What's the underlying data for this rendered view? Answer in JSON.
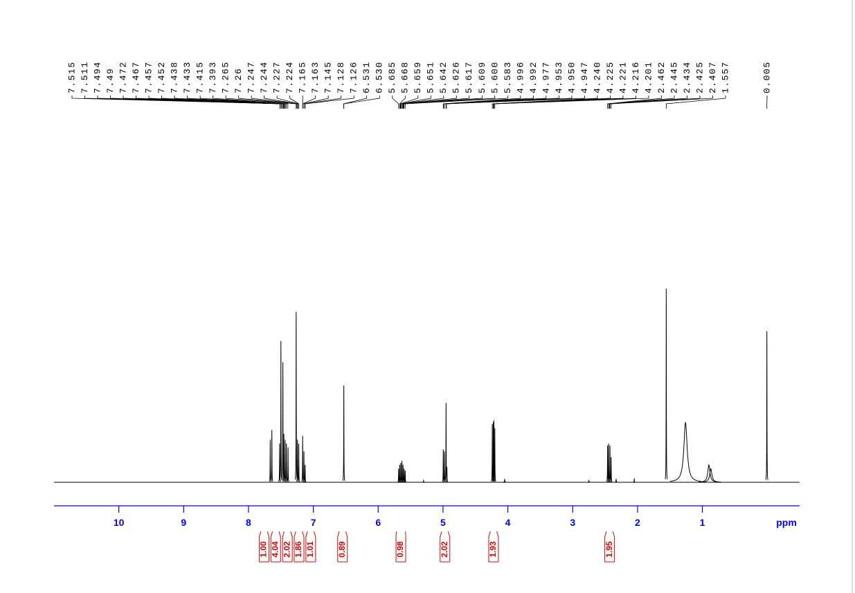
{
  "chart_data": {
    "type": "nmr",
    "x_label": "ppm",
    "xlim": [
      11,
      -0.5
    ],
    "xticks": [
      10,
      9,
      8,
      7,
      6,
      5,
      4,
      3,
      2,
      1
    ],
    "ylim": [
      0,
      100
    ],
    "color": "#000000",
    "series": [
      {
        "x": [
          7.665,
          7.64,
          7.52,
          7.5,
          7.47,
          7.455,
          7.435,
          7.415,
          7.39,
          7.265,
          7.245,
          7.225,
          7.165,
          7.145,
          7.127,
          6.53,
          5.685,
          5.668,
          5.651,
          5.634,
          5.617,
          5.6,
          5.583,
          5.3,
          4.996,
          4.977,
          4.953,
          4.94,
          4.24,
          4.225,
          4.216,
          4.201,
          4.05,
          2.75,
          2.462,
          2.445,
          2.425,
          2.407,
          2.33,
          2.05,
          1.557,
          1.26,
          0.9,
          0.87,
          0.005
        ],
        "values": [
          22,
          27,
          20,
          73,
          62,
          25,
          22,
          20,
          18,
          88,
          22,
          20,
          24,
          16,
          9,
          50,
          7,
          9,
          10,
          11,
          9,
          7,
          6,
          1,
          17,
          16,
          41,
          8,
          30,
          31,
          32,
          28,
          1.5,
          1,
          19,
          20,
          19,
          13,
          1.5,
          2,
          100,
          31,
          9,
          7,
          78
        ],
        "widths": [
          0.002,
          0.002,
          0.002,
          0.002,
          0.002,
          0.002,
          0.002,
          0.002,
          0.002,
          0.002,
          0.002,
          0.002,
          0.002,
          0.002,
          0.002,
          0.002,
          0.002,
          0.002,
          0.002,
          0.002,
          0.002,
          0.002,
          0.002,
          0.002,
          0.002,
          0.002,
          0.002,
          0.002,
          0.002,
          0.002,
          0.002,
          0.002,
          0.003,
          0.003,
          0.002,
          0.002,
          0.002,
          0.002,
          0.003,
          0.002,
          0.002,
          0.03,
          0.02,
          0.02,
          0.002
        ]
      }
    ],
    "peak_color": "#000000",
    "peak_labels": [
      7.515,
      7.511,
      7.494,
      7.49,
      7.472,
      7.467,
      7.457,
      7.452,
      7.438,
      7.433,
      7.415,
      7.393,
      7.265,
      7.26,
      7.247,
      7.244,
      7.227,
      7.224,
      7.165,
      7.163,
      7.145,
      7.128,
      7.126,
      6.531,
      {
        "value": 6.53,
        "label": "6.530"
      },
      5.685,
      5.668,
      5.659,
      5.651,
      5.642,
      5.626,
      5.617,
      5.609,
      {
        "value": 5.6,
        "label": "5.600"
      },
      5.583,
      4.996,
      4.992,
      4.977,
      4.953,
      {
        "value": 4.95,
        "label": "4.950"
      },
      4.947,
      {
        "value": 4.24,
        "label": "4.240"
      },
      4.225,
      4.221,
      4.216,
      4.201,
      2.462,
      2.445,
      2.434,
      2.425,
      2.407,
      1.557,
      0.005
    ],
    "integral_color": "#e00000",
    "integrals": [
      {
        "from": 7.81,
        "to": 7.71,
        "value": 1,
        "label": "1.00"
      },
      {
        "from": 7.63,
        "to": 7.53,
        "value": 4.04,
        "label": "4.04"
      },
      {
        "from": 7.45,
        "to": 7.35,
        "value": 2.02,
        "label": "2.02"
      },
      {
        "from": 7.27,
        "to": 7.17,
        "value": 1.86,
        "label": "1.86"
      },
      {
        "from": 7.09,
        "to": 6.99,
        "value": 1.01,
        "label": "1.01"
      },
      {
        "from": 6.6,
        "to": 6.5,
        "value": 0.89,
        "label": "0.89"
      },
      {
        "from": 5.72,
        "to": 5.58,
        "value": 0.98,
        "label": "0.98"
      },
      {
        "from": 5.02,
        "to": 4.92,
        "value": 2.02,
        "label": "2.02"
      },
      {
        "from": 4.27,
        "to": 4.17,
        "value": 1.93,
        "label": "1.93"
      },
      {
        "from": 2.48,
        "to": 2.38,
        "value": 1.95,
        "label": "1.95"
      }
    ],
    "axis_color": "#0000ff"
  }
}
